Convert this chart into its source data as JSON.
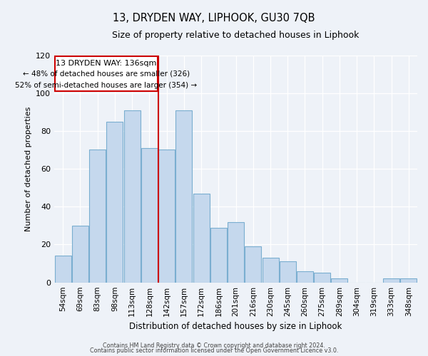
{
  "title": "13, DRYDEN WAY, LIPHOOK, GU30 7QB",
  "subtitle": "Size of property relative to detached houses in Liphook",
  "xlabel": "Distribution of detached houses by size in Liphook",
  "ylabel": "Number of detached properties",
  "categories": [
    "54sqm",
    "69sqm",
    "83sqm",
    "98sqm",
    "113sqm",
    "128sqm",
    "142sqm",
    "157sqm",
    "172sqm",
    "186sqm",
    "201sqm",
    "216sqm",
    "230sqm",
    "245sqm",
    "260sqm",
    "275sqm",
    "289sqm",
    "304sqm",
    "319sqm",
    "333sqm",
    "348sqm"
  ],
  "values": [
    14,
    30,
    70,
    85,
    91,
    71,
    70,
    91,
    47,
    29,
    32,
    19,
    13,
    11,
    6,
    5,
    2,
    0,
    0,
    2,
    2
  ],
  "bar_color": "#c5d8ed",
  "bar_edge_color": "#7aaed0",
  "vline_x": 5.5,
  "vline_color": "#cc0000",
  "annotation_title": "13 DRYDEN WAY: 136sqm",
  "annotation_line1": "← 48% of detached houses are smaller (326)",
  "annotation_line2": "52% of semi-detached houses are larger (354) →",
  "annotation_box_edge": "#cc0000",
  "ylim": [
    0,
    120
  ],
  "footer1": "Contains HM Land Registry data © Crown copyright and database right 2024.",
  "footer2": "Contains public sector information licensed under the Open Government Licence v3.0.",
  "background_color": "#eef2f8"
}
